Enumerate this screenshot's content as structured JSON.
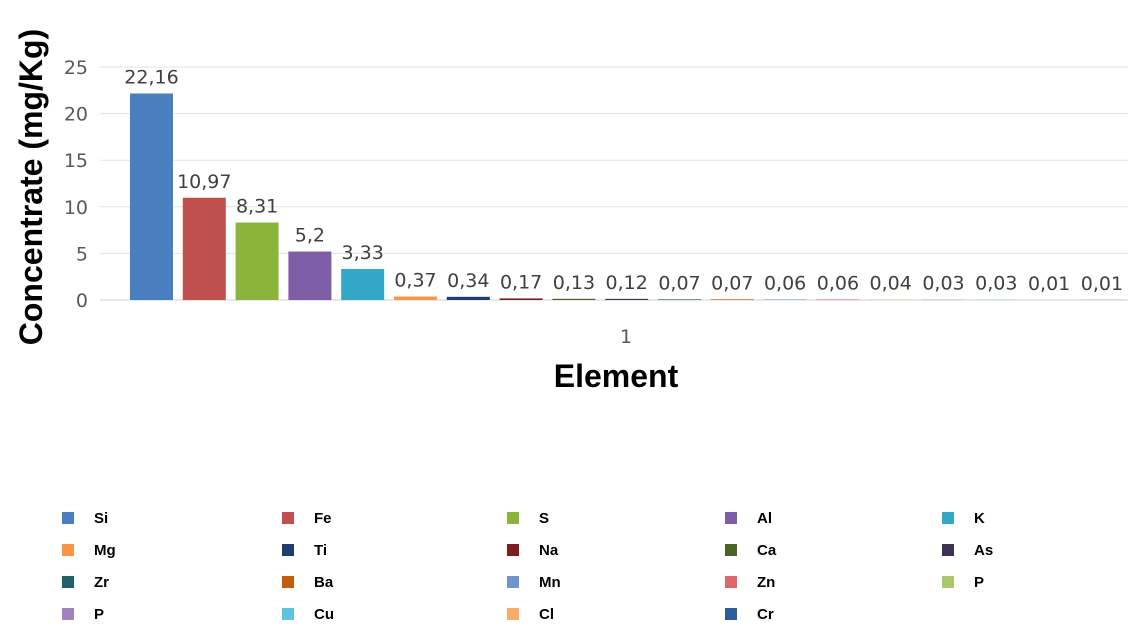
{
  "chart_data": {
    "type": "bar",
    "categories": [
      "1"
    ],
    "xlabel": "Element",
    "ylabel": "Concentrate (mg/Kg)",
    "ylim": [
      0,
      25
    ],
    "yticks": [
      0,
      5,
      10,
      15,
      20,
      25
    ],
    "grid": true,
    "legend_position": "bottom",
    "series": [
      {
        "name": "Si",
        "values": [
          22.16
        ],
        "label": "22,16",
        "color": "#4a7ebf"
      },
      {
        "name": "Fe",
        "values": [
          10.97
        ],
        "label": "10,97",
        "color": "#c0504d"
      },
      {
        "name": "S",
        "values": [
          8.31
        ],
        "label": "8,31",
        "color": "#8cb43c"
      },
      {
        "name": "Al",
        "values": [
          5.2
        ],
        "label": "5,2",
        "color": "#7d5ea6"
      },
      {
        "name": "K",
        "values": [
          3.33
        ],
        "label": "3,33",
        "color": "#35a7c6"
      },
      {
        "name": "Mg",
        "values": [
          0.37
        ],
        "label": "0,37",
        "color": "#f79646"
      },
      {
        "name": "Ti",
        "values": [
          0.34
        ],
        "label": "0,34",
        "color": "#1f3d6e"
      },
      {
        "name": "Na",
        "values": [
          0.17
        ],
        "label": "0,17",
        "color": "#7b1e1e"
      },
      {
        "name": "Ca",
        "values": [
          0.13
        ],
        "label": "0,13",
        "color": "#4f6228"
      },
      {
        "name": "As",
        "values": [
          0.12
        ],
        "label": "0,12",
        "color": "#3f3151"
      },
      {
        "name": "Zr",
        "values": [
          0.07
        ],
        "label": "0,07",
        "color": "#215f6a"
      },
      {
        "name": "Ba",
        "values": [
          0.07
        ],
        "label": "0,07",
        "color": "#c55a11"
      },
      {
        "name": "Mn",
        "values": [
          0.06
        ],
        "label": "0,06",
        "color": "#6f95cc"
      },
      {
        "name": "Zn",
        "values": [
          0.06
        ],
        "label": "0,06",
        "color": "#d9696a"
      },
      {
        "name": "P",
        "values": [
          0.04
        ],
        "label": "0,04",
        "color": "#a9c96a"
      },
      {
        "name": "P",
        "values": [
          0.03
        ],
        "label": "0,03",
        "color": "#9e83bf"
      },
      {
        "name": "Cu",
        "values": [
          0.03
        ],
        "label": "0,03",
        "color": "#5ec3dc"
      },
      {
        "name": "Cl",
        "values": [
          0.01
        ],
        "label": "0,01",
        "color": "#f9ac6a"
      },
      {
        "name": "Cr",
        "values": [
          0.01
        ],
        "label": "0,01",
        "color": "#2e5b9a"
      }
    ]
  }
}
